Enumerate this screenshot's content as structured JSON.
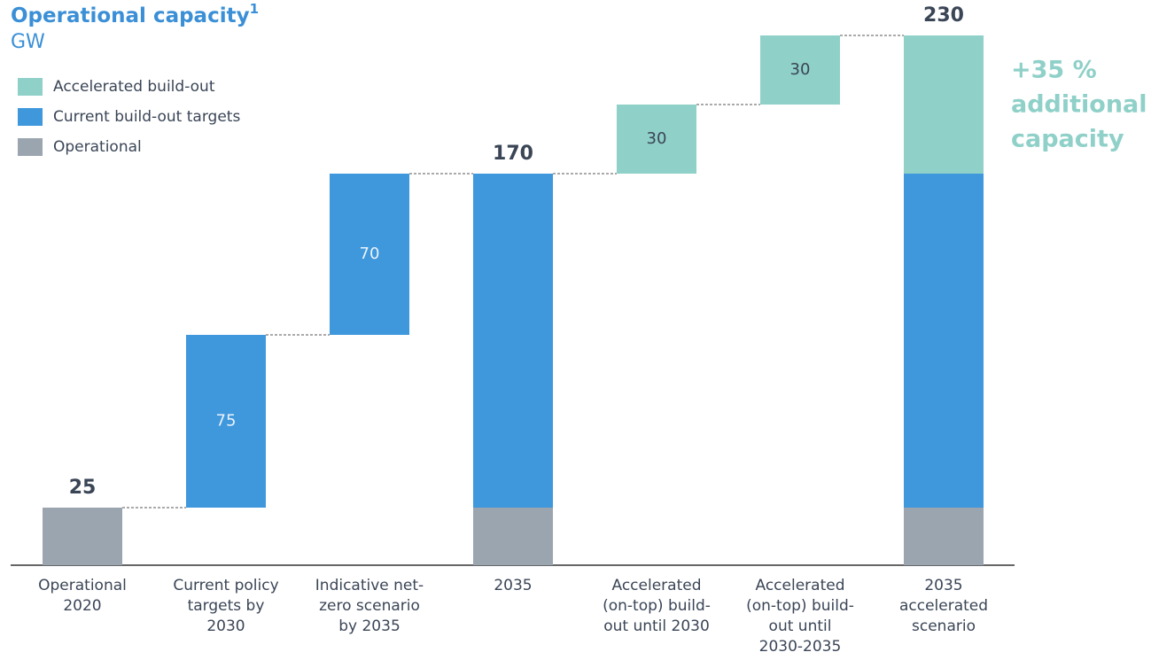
{
  "chart_data": {
    "type": "waterfall",
    "title": "Operational capacity",
    "title_note": "1",
    "subtitle": "GW",
    "categories": [
      [
        "Operational",
        "2020"
      ],
      [
        "Current policy",
        "targets by",
        "2030"
      ],
      [
        "Indicative net-",
        "zero scenario",
        "by 2035"
      ],
      [
        "2035"
      ],
      [
        "Accelerated",
        "(on-top) build-",
        "out until 2030"
      ],
      [
        "Accelerated",
        "(on-top) build-",
        "out until",
        "2030-2035"
      ],
      [
        "2035",
        "accelerated",
        "scenario"
      ]
    ],
    "measure": [
      "absolute",
      "relative",
      "relative",
      "total",
      "relative",
      "relative",
      "total"
    ],
    "series": [
      {
        "name": "Operational",
        "color": "#9ba5b0",
        "values": [
          25,
          null,
          null,
          25,
          null,
          null,
          25
        ]
      },
      {
        "name": "Current build-out targets",
        "color": "#3f97dc",
        "values": [
          null,
          75,
          70,
          145,
          null,
          null,
          145
        ]
      },
      {
        "name": "Accelerated build-out",
        "color": "#8fd0c8",
        "values": [
          null,
          null,
          null,
          null,
          30,
          30,
          60
        ]
      }
    ],
    "totals": [
      25,
      null,
      null,
      170,
      null,
      null,
      230
    ],
    "annotation": [
      "+35 %",
      "additional",
      "capacity"
    ],
    "legend": "top-left"
  }
}
